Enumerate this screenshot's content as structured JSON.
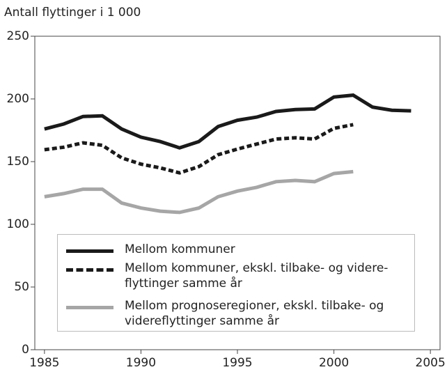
{
  "chart_data": {
    "type": "line",
    "y_label": "Antall flyttinger i 1 000",
    "x": [
      1985,
      1986,
      1987,
      1988,
      1989,
      1990,
      1991,
      1992,
      1993,
      1994,
      1995,
      1996,
      1997,
      1998,
      1999,
      2000,
      2001,
      2002,
      2003,
      2004
    ],
    "series": [
      {
        "name": "Mellom kommuner",
        "color": "#1a1a1a",
        "dash": false,
        "values": [
          176,
          180,
          186,
          186.5,
          176,
          169.5,
          166,
          161,
          166,
          178,
          183,
          185.5,
          190,
          191.5,
          192,
          201.5,
          203,
          193.5,
          191,
          190.5
        ]
      },
      {
        "name": "Mellom kommuner, ekskl. tilbake- og videre-\nflyttinger samme år",
        "color": "#1a1a1a",
        "dash": true,
        "values": [
          159.5,
          161.5,
          165,
          163,
          153,
          148,
          145,
          141,
          146,
          155.5,
          160,
          164,
          168,
          169,
          168,
          176.5,
          179.5,
          null,
          null,
          null
        ]
      },
      {
        "name": "Mellom prognoseregioner, ekskl. tilbake- og\nvidereflyttinger samme år",
        "color": "#a6a6a6",
        "dash": false,
        "values": [
          122,
          124.5,
          128,
          128,
          117,
          113,
          110.5,
          109.5,
          113,
          122,
          126.5,
          129.5,
          134,
          135,
          134,
          140.5,
          142,
          null,
          null,
          null
        ]
      }
    ],
    "xlim": [
      1984.5,
      2005.5
    ],
    "xticks": [
      1985,
      1990,
      1995,
      2000,
      2005
    ],
    "ylim": [
      0,
      250
    ],
    "yticks": [
      0,
      50,
      100,
      150,
      200,
      250
    ]
  }
}
